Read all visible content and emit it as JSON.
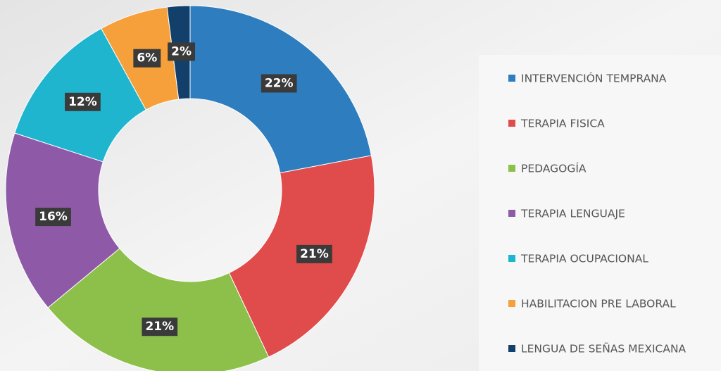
{
  "chart_data": {
    "type": "donut",
    "categories": [
      "INTERVENCIÓN TEMPRANA",
      "TERAPIA FISICA",
      "PEDAGOGÍA",
      "TERAPIA LENGUAJE",
      "TERAPIA OCUPACIONAL",
      "HABILITACION PRE LABORAL",
      "LENGUA DE SEÑAS MEXICANA"
    ],
    "values": [
      22,
      21,
      21,
      16,
      12,
      6,
      2
    ],
    "value_labels": [
      "22%",
      "21%",
      "21%",
      "16%",
      "12%",
      "6%",
      "2%"
    ],
    "colors": [
      "#2e7dbf",
      "#e04b4b",
      "#8dc04a",
      "#8e5aa8",
      "#1fb5cf",
      "#f5a03a",
      "#12406b"
    ],
    "legend": "right"
  }
}
